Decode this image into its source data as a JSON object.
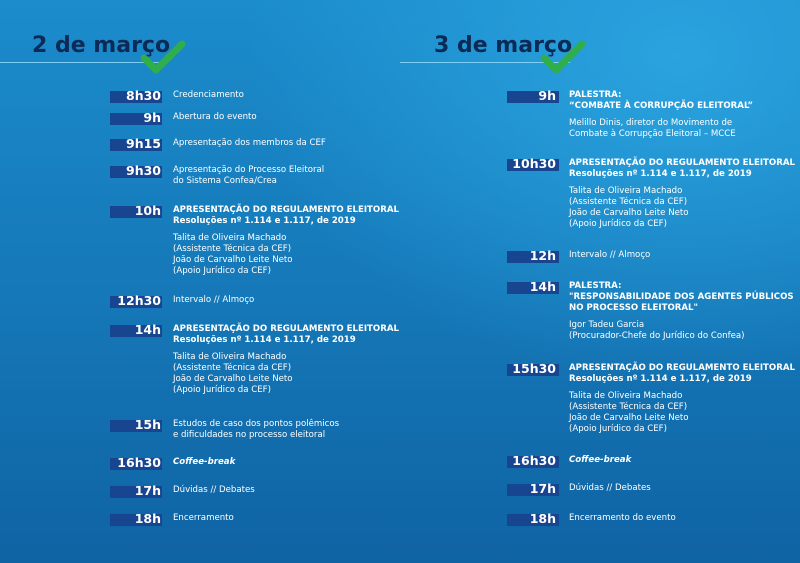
{
  "days": [
    {
      "title": "2 de março",
      "items": [
        {
          "time": "8h30",
          "lines": [
            {
              "t": "Credenciamento"
            }
          ]
        },
        {
          "time": "9h",
          "lines": [
            {
              "t": "Abertura do evento"
            }
          ]
        },
        {
          "time": "9h15",
          "lines": [
            {
              "t": "Apresentação dos membros da CEF"
            }
          ]
        },
        {
          "time": "9h30",
          "lines": [
            {
              "t": "Apresentação do Processo Eleitoral"
            },
            {
              "t": "do Sistema Confea/Crea"
            }
          ]
        },
        {
          "time": "10h",
          "lines": [
            {
              "t": "APRESENTAÇÃO DO REGULAMENTO ELEITORAL",
              "s": "b"
            },
            {
              "t": "Resoluções nº 1.114 e 1.117, de 2019",
              "s": "b"
            },
            {
              "gap": true
            },
            {
              "t": "Talita de Oliveira Machado"
            },
            {
              "t": "(Assistente Técnica da CEF)"
            },
            {
              "t": "João de Carvalho Leite Neto"
            },
            {
              "t": "(Apoio Jurídico da CEF)"
            }
          ]
        },
        {
          "time": "12h30",
          "lines": [
            {
              "t": "Intervalo // Almoço"
            }
          ]
        },
        {
          "time": "14h",
          "lines": [
            {
              "t": "APRESENTAÇÃO DO REGULAMENTO ELEITORAL",
              "s": "b"
            },
            {
              "t": "Resoluções nº 1.114 e 1.117, de 2019",
              "s": "b"
            },
            {
              "gap": true
            },
            {
              "t": "Talita de Oliveira Machado"
            },
            {
              "t": "(Assistente Técnica da CEF)"
            },
            {
              "t": "João de Carvalho Leite Neto"
            },
            {
              "t": "(Apoio Jurídico da CEF)"
            }
          ]
        },
        {
          "time": "15h",
          "lines": [
            {
              "t": "Estudos de caso dos pontos polêmicos"
            },
            {
              "t": "e dificuldades no processo eleitoral"
            }
          ]
        },
        {
          "time": "16h30",
          "lines": [
            {
              "t": "Coffee-break",
              "s": "it"
            }
          ]
        },
        {
          "time": "17h",
          "lines": [
            {
              "t": "Dúvidas // Debates"
            }
          ]
        },
        {
          "time": "18h",
          "lines": [
            {
              "t": "Encerramento"
            }
          ]
        }
      ]
    },
    {
      "title": "3 de março",
      "items": [
        {
          "time": "9h",
          "lines": [
            {
              "t": "PALESTRA:",
              "s": "b"
            },
            {
              "t": "“COMBATE À CORRUPÇÃO ELEITORAL”",
              "s": "b"
            },
            {
              "gap": true
            },
            {
              "t": "Melillo Dinis, diretor do Movimento de"
            },
            {
              "t": "Combate à Corrupção Eleitoral – MCCE"
            }
          ]
        },
        {
          "time": "10h30",
          "lines": [
            {
              "t": "APRESENTAÇÃO DO REGULAMENTO ELEITORAL",
              "s": "b"
            },
            {
              "t": "Resoluções nº 1.114 e 1.117, de 2019",
              "s": "b"
            },
            {
              "gap": true
            },
            {
              "t": "Talita de Oliveira Machado"
            },
            {
              "t": "(Assistente Técnica da CEF)"
            },
            {
              "t": "João de Carvalho Leite Neto"
            },
            {
              "t": "(Apoio Jurídico da CEF)"
            }
          ]
        },
        {
          "time": "12h",
          "lines": [
            {
              "t": "Intervalo // Almoço"
            }
          ]
        },
        {
          "time": "14h",
          "lines": [
            {
              "t": "PALESTRA:",
              "s": "b"
            },
            {
              "t": "\"RESPONSABILIDADE DOS AGENTES PÚBLICOS",
              "s": "b"
            },
            {
              "t": "NO PROCESSO ELEITORAL\"",
              "s": "b"
            },
            {
              "gap": true
            },
            {
              "t": "Igor Tadeu Garcia"
            },
            {
              "t": "(Procurador-Chefe do Jurídico do Confea)"
            }
          ]
        },
        {
          "time": "15h30",
          "lines": [
            {
              "t": "APRESENTAÇÃO DO REGULAMENTO ELEITORAL",
              "s": "b"
            },
            {
              "t": "Resoluções nº 1.114 e 1.117, de 2019",
              "s": "b"
            },
            {
              "gap": true
            },
            {
              "t": "Talita de Oliveira Machado"
            },
            {
              "t": "(Assistente Técnica da CEF)"
            },
            {
              "t": "João de Carvalho Leite Neto"
            },
            {
              "t": "(Apoio Jurídico da CEF)"
            }
          ]
        },
        {
          "time": "16h30",
          "lines": [
            {
              "t": "Coffee-break",
              "s": "it"
            }
          ]
        },
        {
          "time": "17h",
          "lines": [
            {
              "t": "Dúvidas // Debates"
            }
          ]
        },
        {
          "time": "18h",
          "lines": [
            {
              "t": "Encerramento do evento"
            }
          ]
        }
      ]
    }
  ],
  "colors": {
    "title": "#0b2a55",
    "timebar": "#17458f",
    "check": "#2fae4a",
    "rule": "#7fcff5"
  },
  "icons": {
    "day_check": "checkmark-icon"
  }
}
